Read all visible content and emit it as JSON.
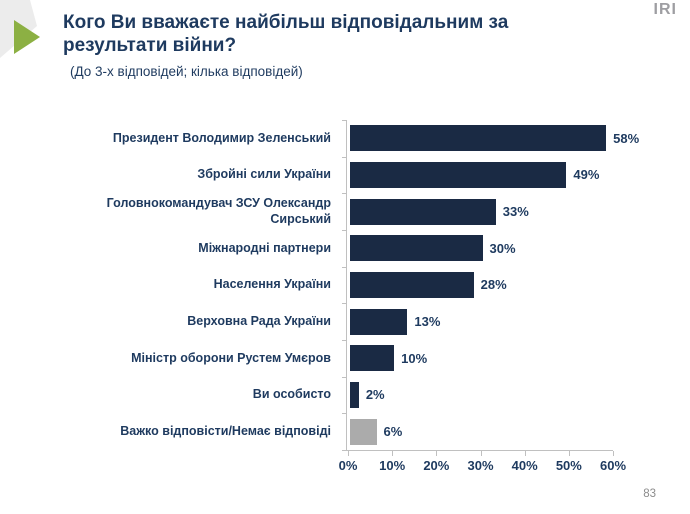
{
  "slide": {
    "title_line1": "Кого Ви вважаєте найбільш відповідальним за",
    "title_line2": "результати війни?",
    "subtitle": "(До 3-х відповідей; кілька відповідей)",
    "logo_text": "IRI",
    "page_number": "83"
  },
  "colors": {
    "bar_navy": "#1a2a44",
    "bar_gray": "#ababab",
    "text_navy": "#1e3a5f",
    "axis_gray": "#c0c0c0",
    "accent_green": "#8cb043",
    "decor_gray": "#ececec",
    "logo_gray": "#9e9ea2"
  },
  "chart_data": {
    "type": "bar",
    "orientation": "horizontal",
    "title": "Кого Ви вважаєте найбільш відповідальним за результати війни?",
    "subtitle": "(До 3-х відповідей; кілька відповідей)",
    "categories": [
      "Президент Володимир Зеленський",
      "Збройні сили України",
      "Головнокомандувач ЗСУ Олександр Сирський",
      "Міжнародні партнери",
      "Населення України",
      "Верховна Рада України",
      "Міністр оборони Рустем Умєров",
      "Ви особисто",
      "Важко відповісти/Немає відповіді"
    ],
    "values": [
      58,
      49,
      33,
      30,
      28,
      13,
      10,
      2,
      6
    ],
    "value_labels": [
      "58%",
      "49%",
      "33%",
      "30%",
      "28%",
      "13%",
      "10%",
      "2%",
      "6%"
    ],
    "bar_colors": [
      "#1a2a44",
      "#1a2a44",
      "#1a2a44",
      "#1a2a44",
      "#1a2a44",
      "#1a2a44",
      "#1a2a44",
      "#1a2a44",
      "#ababab"
    ],
    "xlim": [
      0,
      60
    ],
    "x_tick_labels": [
      "0%",
      "10%",
      "20%",
      "30%",
      "40%",
      "50%",
      "60%"
    ],
    "grid": false,
    "legend": null,
    "xlabel": "",
    "ylabel": ""
  }
}
